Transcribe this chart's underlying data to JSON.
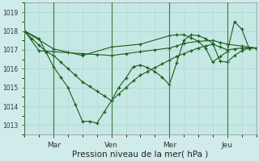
{
  "xlabel": "Pression niveau de la mer( hPa )",
  "background_color": "#d0ecea",
  "plot_bg_color": "#c5e8e5",
  "line_color": "#1a5c1a",
  "grid_color": "#b8d8d4",
  "ylim": [
    1012.5,
    1019.5
  ],
  "yticks": [
    1013,
    1014,
    1015,
    1016,
    1017,
    1018,
    1019
  ],
  "xtick_labels": [
    "Mar",
    "Ven",
    "Mer",
    "Jeu"
  ],
  "xtick_positions": [
    16,
    48,
    80,
    112
  ],
  "xlim": [
    0,
    128
  ],
  "vline_positions": [
    0,
    16,
    48,
    80,
    112
  ],
  "line1_x": [
    0,
    4,
    8,
    12,
    16,
    20,
    24,
    28,
    32,
    36,
    40,
    44,
    48,
    52,
    56,
    60,
    64,
    68,
    72,
    76,
    80,
    84,
    88,
    92,
    96,
    100,
    104,
    108,
    112,
    116,
    120,
    124,
    128
  ],
  "line1_y": [
    1018.0,
    1017.6,
    1017.25,
    1016.9,
    1016.7,
    1016.35,
    1016.0,
    1015.65,
    1015.3,
    1015.05,
    1014.8,
    1014.55,
    1014.3,
    1014.65,
    1015.0,
    1015.35,
    1015.65,
    1015.85,
    1016.05,
    1016.25,
    1016.45,
    1016.65,
    1016.8,
    1016.95,
    1017.1,
    1017.2,
    1017.3,
    1017.15,
    1017.0,
    1017.05,
    1017.1,
    1017.1,
    1017.1
  ],
  "line2_x": [
    0,
    8,
    16,
    24,
    32,
    40,
    48,
    56,
    64,
    72,
    80,
    84,
    88,
    96,
    104,
    108,
    112,
    120,
    128
  ],
  "line2_y": [
    1018.0,
    1016.95,
    1016.9,
    1016.85,
    1016.8,
    1016.75,
    1016.7,
    1016.8,
    1016.9,
    1017.0,
    1017.1,
    1017.2,
    1017.35,
    1017.45,
    1017.5,
    1017.4,
    1017.3,
    1017.2,
    1017.1
  ],
  "line3_x": [
    0,
    8,
    12,
    16,
    20,
    24,
    28,
    32,
    36,
    40,
    44,
    48,
    52,
    56,
    60,
    64,
    68,
    72,
    76,
    80,
    84,
    88,
    92,
    96,
    100,
    104,
    108,
    112,
    116,
    120,
    124,
    128
  ],
  "line3_y": [
    1018.0,
    1017.6,
    1016.85,
    1016.1,
    1015.55,
    1015.0,
    1014.1,
    1013.2,
    1013.2,
    1013.1,
    1013.7,
    1014.3,
    1015.0,
    1015.5,
    1016.1,
    1016.2,
    1016.05,
    1015.85,
    1015.55,
    1015.15,
    1016.3,
    1017.5,
    1017.8,
    1017.75,
    1017.6,
    1017.35,
    1016.4,
    1016.35,
    1016.7,
    1016.95,
    1017.1,
    1017.1
  ],
  "line4_x": [
    0,
    16,
    32,
    48,
    64,
    80,
    84,
    88,
    92,
    96,
    100,
    104,
    108,
    112,
    116,
    120,
    124,
    128
  ],
  "line4_y": [
    1018.0,
    1017.05,
    1016.7,
    1017.15,
    1017.3,
    1017.75,
    1017.8,
    1017.8,
    1017.65,
    1017.45,
    1017.1,
    1016.35,
    1016.65,
    1016.9,
    1018.5,
    1018.1,
    1017.1,
    1017.1
  ]
}
